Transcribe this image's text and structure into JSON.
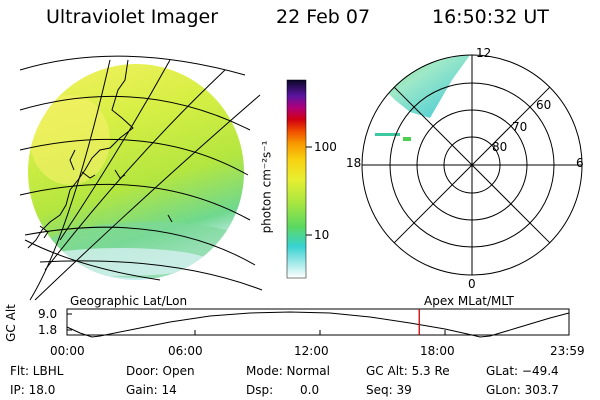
{
  "header": {
    "instrument": "Ultraviolet Imager",
    "date": "22 Feb 07",
    "time": "16:50:32 UT"
  },
  "colorbar": {
    "label": "photon cm⁻²s⁻¹",
    "ticks": [
      "100",
      "10"
    ]
  },
  "polar": {
    "mlt_labels": {
      "top": "12",
      "left": "18",
      "right": "6",
      "bottom": "0"
    },
    "lat_labels": [
      "60",
      "70",
      "80"
    ]
  },
  "panel_titles": {
    "left": "Geographic Lat/Lon",
    "right": "Apex MLat/MLT"
  },
  "altitude_plot": {
    "ylabel": "GC Alt",
    "yticks": [
      "9.0",
      "1.8"
    ],
    "xticks": [
      "00:00",
      "06:00",
      "12:00",
      "18:00",
      "23:59"
    ],
    "current_time_hours": 16.84
  },
  "info": {
    "filter": "Flt: LBHL",
    "door": "Door: Open",
    "mode": "Mode: Normal",
    "gc_alt": "GC Alt: 5.3 Re",
    "glat": "GLat: −49.4",
    "ip": "IP: 18.0",
    "gain": "Gain: 14",
    "dsp_label": "Dsp:",
    "dsp_value": "0.0",
    "seq": "Seq: 39",
    "glon": "GLon: 303.7"
  },
  "colors": {
    "map_fill_main": "#c8ec3a",
    "map_fill_upper": "#f0f05a",
    "map_fill_lower": "#70d880",
    "map_edge": "#b0e8e8",
    "orbit_marker": "#cc0000"
  }
}
